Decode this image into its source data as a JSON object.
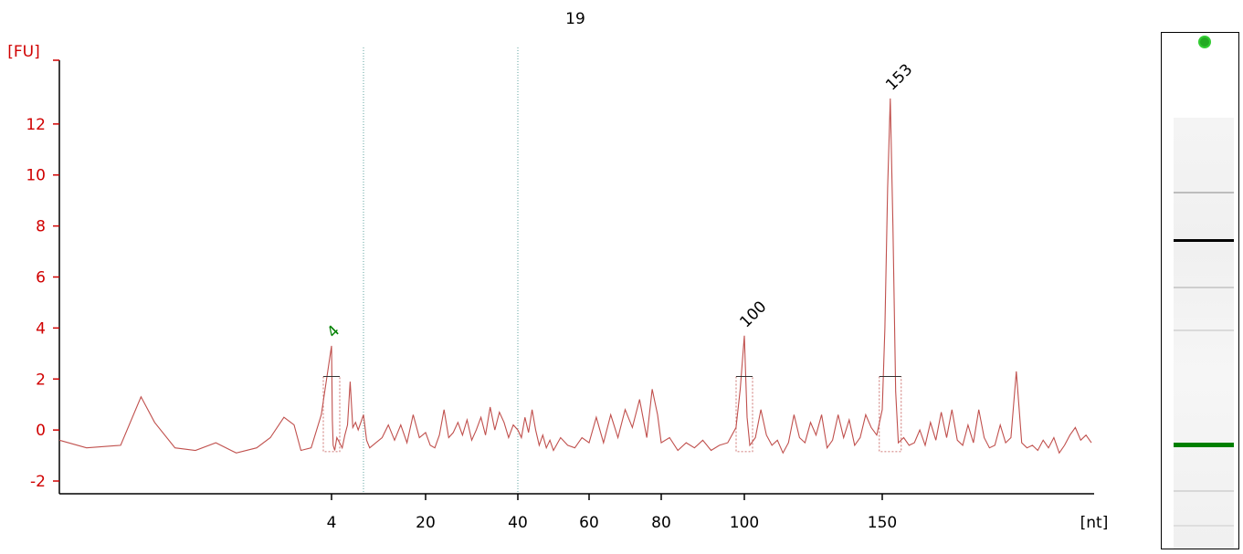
{
  "sample_title": "19",
  "chart_data": {
    "type": "line",
    "title": "19",
    "xlabel": "[nt]",
    "ylabel": "[FU]",
    "ylim": [
      -2.5,
      14.5
    ],
    "yticks": [
      -2,
      0,
      2,
      4,
      6,
      8,
      10,
      12
    ],
    "x_ticks": [
      {
        "value": 4,
        "label": "4"
      },
      {
        "value": 20,
        "label": "20"
      },
      {
        "value": 40,
        "label": "40"
      },
      {
        "value": 60,
        "label": "60"
      },
      {
        "value": 80,
        "label": "80"
      },
      {
        "value": 100,
        "label": "100"
      },
      {
        "value": 150,
        "label": "150"
      }
    ],
    "grid": false,
    "vertical_guides_nt": [
      10,
      40
    ],
    "series": [
      {
        "color": "#c0504d",
        "points": [
          [
            0,
            -0.4
          ],
          [
            0.4,
            -0.7
          ],
          [
            0.9,
            -0.6
          ],
          [
            1.2,
            1.3
          ],
          [
            1.4,
            0.3
          ],
          [
            1.7,
            -0.7
          ],
          [
            2.0,
            -0.8
          ],
          [
            2.3,
            -0.5
          ],
          [
            2.6,
            -0.9
          ],
          [
            2.9,
            -0.7
          ],
          [
            3.1,
            -0.3
          ],
          [
            3.3,
            0.5
          ],
          [
            3.45,
            0.2
          ],
          [
            3.55,
            -0.8
          ],
          [
            3.7,
            -0.7
          ],
          [
            3.85,
            0.6
          ],
          [
            4.0,
            3.3
          ],
          [
            4.15,
            0.4
          ],
          [
            4.3,
            -0.6
          ],
          [
            4.6,
            -0.8
          ],
          [
            5.0,
            -0.3
          ],
          [
            5.5,
            -0.5
          ],
          [
            6.0,
            -0.7
          ],
          [
            6.5,
            -0.2
          ],
          [
            7.0,
            0.2
          ],
          [
            7.5,
            1.9
          ],
          [
            8.0,
            0.1
          ],
          [
            8.5,
            0.3
          ],
          [
            9.0,
            0.0
          ],
          [
            9.5,
            0.3
          ],
          [
            10.0,
            0.6
          ],
          [
            10.5,
            -0.4
          ],
          [
            11.0,
            -0.7
          ],
          [
            12.0,
            -0.5
          ],
          [
            13.0,
            -0.3
          ],
          [
            14.0,
            0.2
          ],
          [
            15.0,
            -0.4
          ],
          [
            16.0,
            0.2
          ],
          [
            17.0,
            -0.5
          ],
          [
            18.0,
            0.6
          ],
          [
            19.0,
            -0.3
          ],
          [
            20.0,
            -0.1
          ],
          [
            21.0,
            -0.6
          ],
          [
            22.0,
            -0.7
          ],
          [
            23.0,
            -0.2
          ],
          [
            24.0,
            0.8
          ],
          [
            25.0,
            -0.3
          ],
          [
            26.0,
            -0.1
          ],
          [
            27.0,
            0.3
          ],
          [
            28.0,
            -0.2
          ],
          [
            29.0,
            0.4
          ],
          [
            30.0,
            -0.4
          ],
          [
            31.0,
            0.0
          ],
          [
            32.0,
            0.5
          ],
          [
            33.0,
            -0.2
          ],
          [
            34.0,
            0.9
          ],
          [
            35.0,
            0.0
          ],
          [
            36.0,
            0.7
          ],
          [
            37.0,
            0.3
          ],
          [
            38.0,
            -0.3
          ],
          [
            39.0,
            0.2
          ],
          [
            40.0,
            0.0
          ],
          [
            41.0,
            -0.3
          ],
          [
            42.0,
            0.5
          ],
          [
            43.0,
            -0.1
          ],
          [
            44.0,
            0.8
          ],
          [
            45.0,
            0.0
          ],
          [
            46.0,
            -0.6
          ],
          [
            47.0,
            -0.2
          ],
          [
            48.0,
            -0.7
          ],
          [
            49.0,
            -0.4
          ],
          [
            50.0,
            -0.8
          ],
          [
            52.0,
            -0.3
          ],
          [
            54.0,
            -0.6
          ],
          [
            56.0,
            -0.7
          ],
          [
            58.0,
            -0.3
          ],
          [
            60.0,
            -0.5
          ],
          [
            62.0,
            0.5
          ],
          [
            64.0,
            -0.5
          ],
          [
            66.0,
            0.6
          ],
          [
            68.0,
            -0.3
          ],
          [
            70.0,
            0.8
          ],
          [
            72.0,
            0.1
          ],
          [
            74.0,
            1.2
          ],
          [
            76.0,
            -0.3
          ],
          [
            77.5,
            1.6
          ],
          [
            79.0,
            0.6
          ],
          [
            80.0,
            -0.5
          ],
          [
            82.0,
            -0.3
          ],
          [
            84.0,
            -0.8
          ],
          [
            86.0,
            -0.5
          ],
          [
            88.0,
            -0.7
          ],
          [
            90.0,
            -0.4
          ],
          [
            92.0,
            -0.8
          ],
          [
            94.0,
            -0.6
          ],
          [
            96.0,
            -0.5
          ],
          [
            98.0,
            0.1
          ],
          [
            99.0,
            1.6
          ],
          [
            100.0,
            3.7
          ],
          [
            101.0,
            0.5
          ],
          [
            102.0,
            -0.6
          ],
          [
            104.0,
            -0.3
          ],
          [
            106.0,
            0.8
          ],
          [
            108.0,
            -0.2
          ],
          [
            110.0,
            -0.6
          ],
          [
            112.0,
            -0.4
          ],
          [
            114.0,
            -0.9
          ],
          [
            116.0,
            -0.5
          ],
          [
            118.0,
            0.6
          ],
          [
            120.0,
            -0.3
          ],
          [
            122.0,
            -0.5
          ],
          [
            124.0,
            0.3
          ],
          [
            126.0,
            -0.2
          ],
          [
            128.0,
            0.6
          ],
          [
            130.0,
            -0.7
          ],
          [
            132.0,
            -0.4
          ],
          [
            134.0,
            0.6
          ],
          [
            136.0,
            -0.3
          ],
          [
            138.0,
            0.4
          ],
          [
            140.0,
            -0.6
          ],
          [
            142.0,
            -0.3
          ],
          [
            144.0,
            0.6
          ],
          [
            146.0,
            0.1
          ],
          [
            148.0,
            -0.2
          ],
          [
            150.0,
            0.8
          ],
          [
            151.0,
            4.0
          ],
          [
            152.0,
            9.5
          ],
          [
            153.0,
            13.0
          ],
          [
            154.0,
            8.0
          ],
          [
            155.0,
            1.5
          ],
          [
            156.0,
            -0.5
          ],
          [
            158.0,
            -0.3
          ],
          [
            160.0,
            -0.6
          ],
          [
            162.0,
            -0.5
          ],
          [
            164.0,
            0.0
          ],
          [
            166.0,
            -0.6
          ],
          [
            168.0,
            0.3
          ],
          [
            170.0,
            -0.4
          ],
          [
            172.0,
            0.7
          ],
          [
            174.0,
            -0.3
          ],
          [
            176.0,
            0.8
          ],
          [
            178.0,
            -0.4
          ],
          [
            180.0,
            -0.6
          ],
          [
            182.0,
            0.2
          ],
          [
            184.0,
            -0.5
          ],
          [
            186.0,
            0.8
          ],
          [
            188.0,
            -0.3
          ],
          [
            190.0,
            -0.7
          ],
          [
            192.0,
            -0.6
          ],
          [
            194.0,
            0.2
          ],
          [
            196.0,
            -0.5
          ],
          [
            198.0,
            -0.3
          ],
          [
            200.0,
            2.3
          ],
          [
            202.0,
            -0.5
          ],
          [
            204.0,
            -0.7
          ],
          [
            206.0,
            -0.6
          ],
          [
            208.0,
            -0.8
          ],
          [
            210.0,
            -0.4
          ],
          [
            212.0,
            -0.7
          ],
          [
            214.0,
            -0.3
          ],
          [
            216.0,
            -0.9
          ],
          [
            218.0,
            -0.6
          ],
          [
            220.0,
            -0.2
          ],
          [
            222.0,
            0.1
          ],
          [
            224.0,
            -0.4
          ],
          [
            226.0,
            -0.2
          ],
          [
            228.0,
            -0.5
          ]
        ]
      }
    ],
    "peak_labels": [
      {
        "x": 4,
        "y": 3.3,
        "label": "4",
        "color": "#008000"
      },
      {
        "x": 100,
        "y": 3.7,
        "label": "100",
        "color": "#000000"
      },
      {
        "x": 153,
        "y": 13.0,
        "label": "153",
        "color": "#000000"
      }
    ],
    "gel_bands": [
      {
        "position": 0.17,
        "intensity": 0.5,
        "color": "#888888"
      },
      {
        "position": 0.28,
        "intensity": 1.0,
        "color": "#000000"
      },
      {
        "position": 0.39,
        "intensity": 0.4,
        "color": "#999999"
      },
      {
        "position": 0.49,
        "intensity": 0.3,
        "color": "#aaaaaa"
      },
      {
        "position": 0.75,
        "intensity": 1.0,
        "color": "#008000"
      },
      {
        "position": 0.86,
        "intensity": 0.3,
        "color": "#aaaaaa"
      },
      {
        "position": 0.94,
        "intensity": 0.2,
        "color": "#bbbbbb"
      }
    ]
  }
}
